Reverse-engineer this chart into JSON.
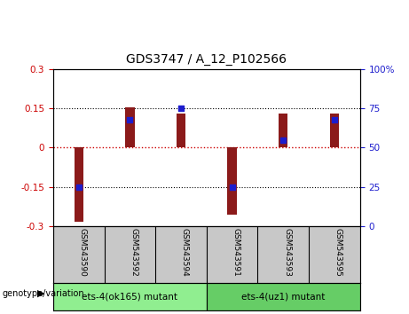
{
  "title": "GDS3747 / A_12_P102566",
  "samples": [
    "GSM543590",
    "GSM543592",
    "GSM543594",
    "GSM543591",
    "GSM543593",
    "GSM543595"
  ],
  "log2_ratio": [
    -0.285,
    0.155,
    0.13,
    -0.255,
    0.13,
    0.13
  ],
  "percentile_rank": [
    25,
    68,
    75,
    25,
    55,
    68
  ],
  "group_labels": [
    "ets-4(ok165) mutant",
    "ets-4(uz1) mutant"
  ],
  "group_colors": [
    "#90EE90",
    "#66CD66"
  ],
  "ylim_left": [
    -0.3,
    0.3
  ],
  "ylim_right": [
    0,
    100
  ],
  "yticks_left": [
    -0.3,
    -0.15,
    0,
    0.15,
    0.3
  ],
  "yticks_right": [
    0,
    25,
    50,
    75,
    100
  ],
  "ytick_labels_right": [
    "0",
    "25",
    "50",
    "75",
    "100%"
  ],
  "bar_color": "#8B1A1A",
  "dot_color": "#1C1CCD",
  "zero_line_color": "#CC0000",
  "hline_color": "black",
  "bg_color": "white",
  "plot_bg_color": "white",
  "label_bg_color": "#C8C8C8",
  "left_tick_color": "#CC0000",
  "right_tick_color": "#1C1CCD",
  "legend_log2_color": "#CC0000",
  "legend_pct_color": "#1C1CCD",
  "genotype_label": "genotype/variation",
  "bar_width": 0.18
}
